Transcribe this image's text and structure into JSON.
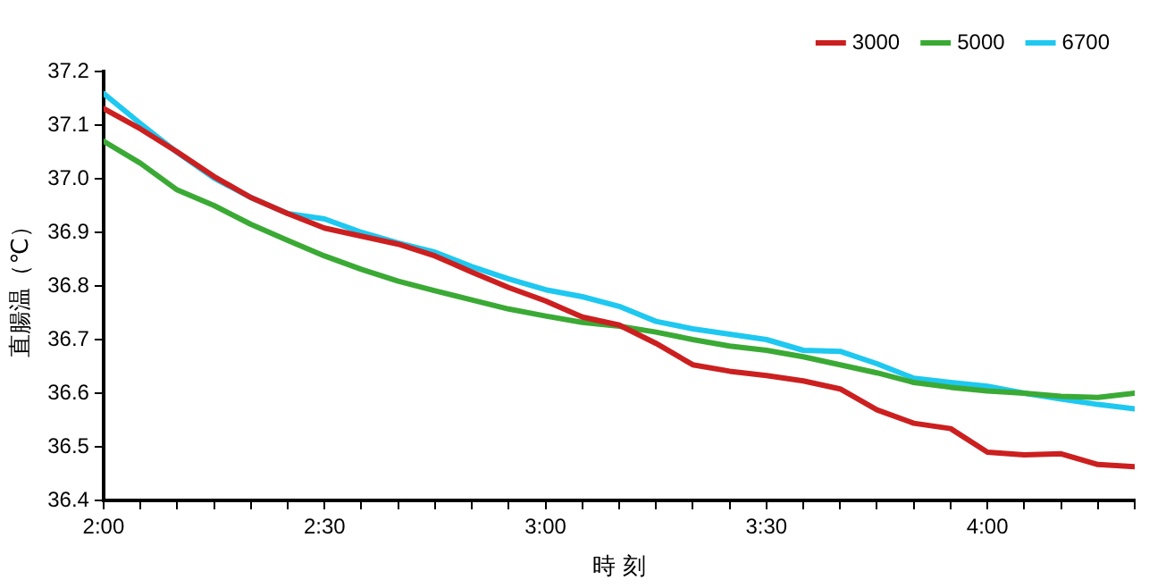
{
  "chart_data": {
    "type": "line",
    "xlabel": "時 刻",
    "ylabel": "直腸温（℃）",
    "x": [
      2,
      2.0833,
      2.1667,
      2.25,
      2.3333,
      2.4167,
      2.5,
      2.5833,
      2.6667,
      2.75,
      2.8333,
      2.9167,
      3,
      3.0833,
      3.1667,
      3.25,
      3.3333,
      3.4167,
      3.5,
      3.5833,
      3.6667,
      3.75,
      3.8333,
      3.9167,
      4,
      4.0833,
      4.1667,
      4.25,
      4.3333
    ],
    "series": [
      {
        "name": "3000",
        "color": "#cc1f1f",
        "values": [
          37.131,
          37.093,
          37.05,
          37.004,
          36.965,
          36.935,
          36.908,
          36.893,
          36.878,
          36.856,
          36.826,
          36.797,
          36.772,
          36.742,
          36.727,
          36.693,
          36.653,
          36.641,
          36.633,
          36.623,
          36.608,
          36.569,
          36.544,
          36.534,
          36.49,
          36.485,
          36.487,
          36.467,
          36.463
        ]
      },
      {
        "name": "5000",
        "color": "#3aaa35",
        "values": [
          37.07,
          37.029,
          36.979,
          36.95,
          36.915,
          36.885,
          36.856,
          36.831,
          36.809,
          36.791,
          36.774,
          36.757,
          36.744,
          36.732,
          36.725,
          36.714,
          36.7,
          36.688,
          36.68,
          36.668,
          36.653,
          36.638,
          36.62,
          36.611,
          36.604,
          36.6,
          36.594,
          36.592,
          36.6
        ]
      },
      {
        "name": "6700",
        "color": "#1ec8f0",
        "values": [
          37.159,
          37.103,
          37.049,
          37.001,
          36.965,
          36.935,
          36.925,
          36.9,
          36.88,
          36.863,
          36.836,
          36.813,
          36.793,
          36.78,
          36.762,
          36.734,
          36.72,
          36.71,
          36.7,
          36.68,
          36.678,
          36.655,
          36.628,
          36.62,
          36.613,
          36.6,
          36.589,
          36.579,
          36.571
        ]
      }
    ],
    "xlim": [
      2,
      4.3333
    ],
    "xticks": [
      {
        "value": 2,
        "label": "2:00"
      },
      {
        "value": 2.0833,
        "label": null
      },
      {
        "value": 2.1667,
        "label": null
      },
      {
        "value": 2.25,
        "label": null
      },
      {
        "value": 2.3333,
        "label": null
      },
      {
        "value": 2.4167,
        "label": null
      },
      {
        "value": 2.5,
        "label": "2:30"
      },
      {
        "value": 2.5833,
        "label": null
      },
      {
        "value": 2.6667,
        "label": null
      },
      {
        "value": 2.75,
        "label": null
      },
      {
        "value": 2.8333,
        "label": null
      },
      {
        "value": 2.9167,
        "label": null
      },
      {
        "value": 3,
        "label": "3:00"
      },
      {
        "value": 3.0833,
        "label": null
      },
      {
        "value": 3.1667,
        "label": null
      },
      {
        "value": 3.25,
        "label": null
      },
      {
        "value": 3.3333,
        "label": null
      },
      {
        "value": 3.4167,
        "label": null
      },
      {
        "value": 3.5,
        "label": "3:30"
      },
      {
        "value": 3.5833,
        "label": null
      },
      {
        "value": 3.6667,
        "label": null
      },
      {
        "value": 3.75,
        "label": null
      },
      {
        "value": 3.8333,
        "label": null
      },
      {
        "value": 3.9167,
        "label": null
      },
      {
        "value": 4,
        "label": "4:00"
      },
      {
        "value": 4.0833,
        "label": null
      },
      {
        "value": 4.1667,
        "label": null
      },
      {
        "value": 4.25,
        "label": null
      },
      {
        "value": 4.3333,
        "label": null
      }
    ],
    "ylim": [
      36.4,
      37.2
    ],
    "yticks": [
      36.4,
      36.5,
      36.6,
      36.7,
      36.8,
      36.9,
      {
        "value": 37,
        "label": "37.0"
      },
      37.1,
      37.2
    ],
    "legend": "top right",
    "marker": "none",
    "line_style": "solid"
  }
}
